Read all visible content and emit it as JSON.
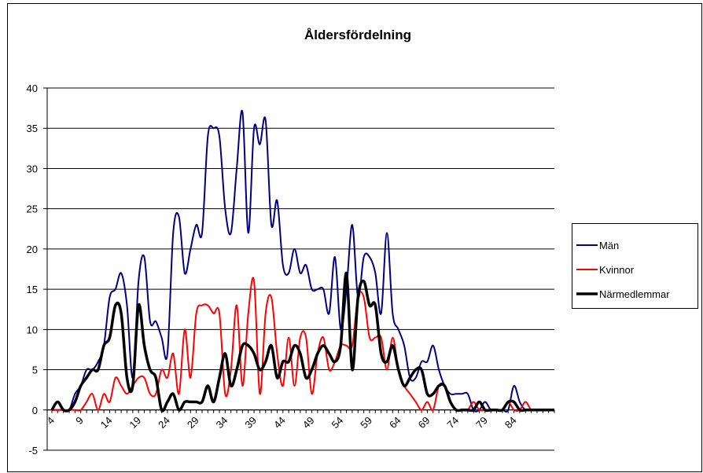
{
  "chart_data": {
    "type": "line",
    "title": "Åldersfördelning",
    "categories": [
      4,
      null,
      null,
      null,
      null,
      9,
      null,
      null,
      null,
      null,
      14,
      null,
      null,
      null,
      null,
      19,
      null,
      null,
      null,
      null,
      24,
      null,
      null,
      null,
      null,
      29,
      null,
      null,
      null,
      null,
      34,
      null,
      null,
      null,
      null,
      39,
      null,
      null,
      null,
      null,
      44,
      null,
      null,
      null,
      null,
      49,
      null,
      null,
      null,
      null,
      54,
      null,
      null,
      null,
      null,
      59,
      null,
      null,
      null,
      null,
      64,
      null,
      null,
      null,
      null,
      69,
      null,
      null,
      null,
      null,
      74,
      null,
      null,
      null,
      null,
      79,
      null,
      null,
      null,
      null,
      84,
      null,
      null,
      null,
      null,
      null,
      null,
      null
    ],
    "series": [
      {
        "name": "Män",
        "color": "#000080",
        "width": 2,
        "values": [
          0,
          0,
          0,
          0,
          2,
          3,
          5,
          5,
          6,
          8,
          14,
          15,
          17,
          13,
          4,
          16,
          19,
          11,
          11,
          9,
          7,
          22,
          24,
          17,
          20,
          23,
          22,
          34,
          35,
          34,
          25,
          22,
          30,
          37,
          22,
          35,
          33,
          36,
          23,
          26,
          18,
          17,
          20,
          17,
          18,
          15,
          15,
          15,
          12,
          19,
          10,
          15,
          23,
          14,
          19,
          19,
          17,
          12,
          22,
          12,
          10,
          8,
          4,
          4,
          6,
          6,
          8,
          5,
          3,
          2,
          2,
          2,
          2,
          0,
          0,
          1,
          0,
          0,
          0,
          0,
          3,
          1,
          0,
          0,
          0,
          0,
          0,
          0
        ]
      },
      {
        "name": "Kvinnor",
        "color": "#ff0000",
        "width": 2,
        "values": [
          0,
          0,
          0,
          0,
          0,
          0,
          1,
          2,
          0,
          2,
          1,
          4,
          3,
          2,
          3,
          4,
          4,
          2,
          2,
          5,
          4,
          7,
          2,
          10,
          4,
          12,
          13,
          13,
          12,
          12,
          2,
          5,
          13,
          3,
          12,
          16,
          2,
          12,
          14,
          7,
          3,
          9,
          3,
          9,
          9,
          2,
          7,
          9,
          5,
          6,
          8,
          8,
          8,
          14,
          14,
          9,
          9,
          9,
          5,
          9,
          5,
          3,
          2,
          1,
          0,
          1,
          0,
          3,
          3,
          1,
          0,
          0,
          0,
          1,
          0,
          0,
          0,
          0,
          0,
          1,
          0,
          0,
          1,
          0,
          0,
          0,
          0,
          0
        ]
      },
      {
        "name": "Närmedlemmar",
        "color": "#000000",
        "width": 3.5,
        "values": [
          0,
          1,
          0,
          0,
          1,
          3,
          4,
          5,
          5,
          8,
          9,
          13,
          12,
          4,
          3,
          13,
          8,
          5,
          4,
          0,
          1,
          2,
          0,
          1,
          1,
          1,
          1,
          3,
          1,
          4,
          7,
          3,
          5,
          8,
          8,
          7,
          5,
          6,
          8,
          4,
          6,
          6,
          8,
          7,
          4,
          5,
          7,
          8,
          7,
          6,
          8,
          17,
          5,
          14,
          16,
          13,
          13,
          7,
          6,
          8,
          5,
          3,
          4,
          5,
          5,
          2,
          2,
          3,
          3,
          1,
          0,
          0,
          0,
          0,
          1,
          0,
          0,
          0,
          0,
          1,
          1,
          0,
          0,
          0,
          0,
          0,
          0,
          0
        ]
      }
    ],
    "ylim": [
      -5,
      40
    ],
    "yticks": [
      -5,
      0,
      5,
      10,
      15,
      20,
      25,
      30,
      35,
      40
    ],
    "grid": true,
    "legend": "right",
    "smooth": true
  }
}
